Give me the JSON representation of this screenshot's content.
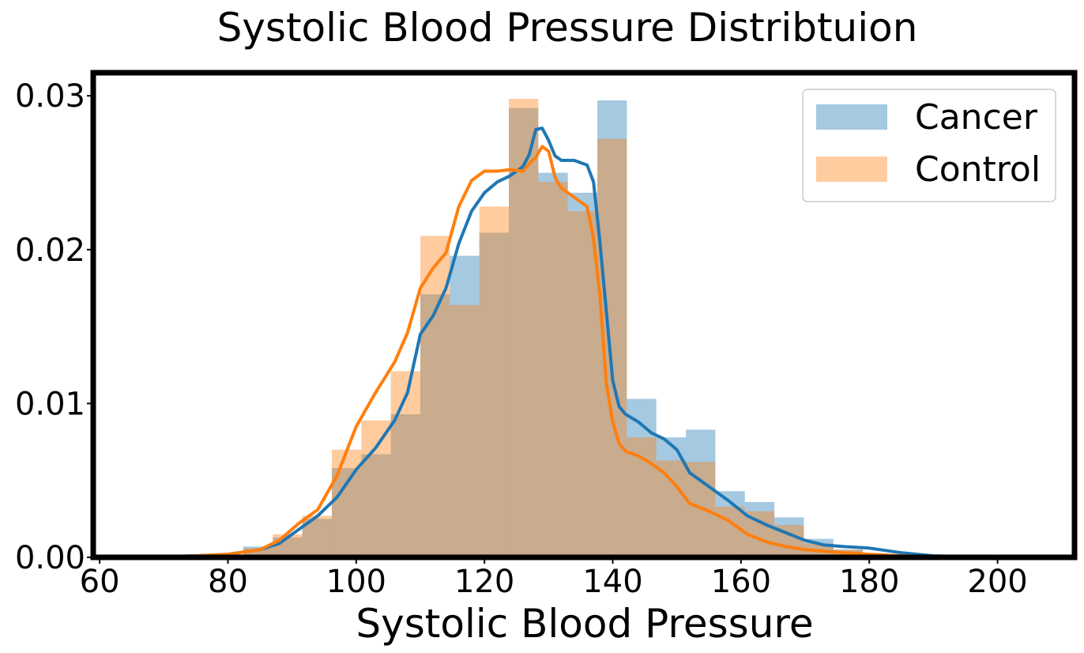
{
  "chart_data": {
    "type": "histogram",
    "title": "Systolic Blood Pressure Distribtuion",
    "xlabel": "Systolic Blood Pressure",
    "ylabel": "",
    "xlim": [
      59,
      212
    ],
    "ylim": [
      0,
      0.0315
    ],
    "xticks": [
      60,
      80,
      100,
      120,
      140,
      160,
      180,
      200
    ],
    "xtick_labels": [
      "60",
      "80",
      "100",
      "120",
      "140",
      "160",
      "180",
      "200"
    ],
    "yticks": [
      0,
      0.01,
      0.02,
      0.03
    ],
    "ytick_labels": [
      "0.00",
      "0.01",
      "0.02",
      "0.03"
    ],
    "grid": false,
    "legend_position": "top-right",
    "bin_edges": [
      82.4,
      87.0,
      91.6,
      96.2,
      100.8,
      105.4,
      110.0,
      114.6,
      119.2,
      123.8,
      128.4,
      133.0,
      137.6,
      142.2,
      146.8,
      151.4,
      156.0,
      160.6,
      165.2,
      169.8,
      174.4,
      179.0
    ],
    "series": [
      {
        "name": "Cancer",
        "color": "#1f77b4",
        "hist_values": [
          0.0007,
          0.0013,
          0.0025,
          0.0058,
          0.0067,
          0.0093,
          0.0171,
          0.0196,
          0.0211,
          0.0292,
          0.025,
          0.0237,
          0.0297,
          0.0103,
          0.0078,
          0.0083,
          0.0043,
          0.0036,
          0.0026,
          0.0012,
          0.0005
        ],
        "kde_x": [
          70,
          75,
          80,
          85,
          88,
          91,
          94,
          97,
          100,
          103,
          106,
          108,
          110,
          112,
          114,
          116,
          118,
          120,
          122,
          124,
          126,
          127,
          128,
          129,
          130,
          131,
          132,
          134,
          136,
          137,
          138,
          139,
          140,
          141,
          142,
          144,
          146,
          148,
          150,
          152,
          155,
          158,
          161,
          164,
          167,
          170,
          173,
          176,
          180,
          185,
          190,
          195,
          200
        ],
        "kde_y": [
          5e-05,
          0.0001,
          0.0002,
          0.0005,
          0.0009,
          0.0018,
          0.0027,
          0.0039,
          0.0057,
          0.0071,
          0.0089,
          0.0107,
          0.0145,
          0.0157,
          0.0175,
          0.0204,
          0.0225,
          0.0237,
          0.0244,
          0.0248,
          0.0254,
          0.0262,
          0.0278,
          0.0279,
          0.0271,
          0.0261,
          0.0258,
          0.0258,
          0.0255,
          0.0244,
          0.0205,
          0.016,
          0.0115,
          0.0098,
          0.0093,
          0.0088,
          0.0081,
          0.0077,
          0.007,
          0.0055,
          0.0046,
          0.0037,
          0.0027,
          0.0021,
          0.0016,
          0.0011,
          0.0008,
          0.0007,
          0.0006,
          0.0003,
          0.0001,
          5e-05,
          2e-05
        ]
      },
      {
        "name": "Control",
        "color": "#ff7f0e",
        "hist_values": [
          0.0006,
          0.0015,
          0.0027,
          0.007,
          0.0089,
          0.0121,
          0.0209,
          0.0164,
          0.0228,
          0.0298,
          0.0244,
          0.0225,
          0.0272,
          0.0078,
          0.0063,
          0.0062,
          0.0033,
          0.003,
          0.0021,
          0.0009,
          0.0005
        ],
        "kde_x": [
          70,
          75,
          80,
          85,
          88,
          91,
          94,
          97,
          100,
          103,
          106,
          108,
          110,
          112,
          114,
          116,
          118,
          120,
          122,
          124,
          126,
          127,
          128,
          129,
          130,
          131,
          132,
          134,
          136,
          137,
          138,
          139,
          140,
          141,
          142,
          144,
          146,
          148,
          150,
          152,
          155,
          158,
          161,
          164,
          167,
          170,
          173,
          176,
          180,
          185,
          190,
          195,
          200
        ],
        "kde_y": [
          5e-05,
          0.0001,
          0.0002,
          0.0005,
          0.0011,
          0.0022,
          0.0031,
          0.0053,
          0.0085,
          0.0107,
          0.0127,
          0.0146,
          0.0175,
          0.0188,
          0.0198,
          0.0228,
          0.0245,
          0.0251,
          0.0251,
          0.0252,
          0.0251,
          0.0256,
          0.026,
          0.0267,
          0.0264,
          0.0247,
          0.024,
          0.0234,
          0.0228,
          0.0207,
          0.017,
          0.0113,
          0.0088,
          0.0074,
          0.0069,
          0.0066,
          0.0061,
          0.0055,
          0.0046,
          0.0035,
          0.003,
          0.0024,
          0.0015,
          0.001,
          0.0007,
          0.0005,
          0.0004,
          0.0003,
          0.0002,
          0.0001,
          5e-05,
          2e-05,
          1e-05
        ]
      }
    ]
  }
}
